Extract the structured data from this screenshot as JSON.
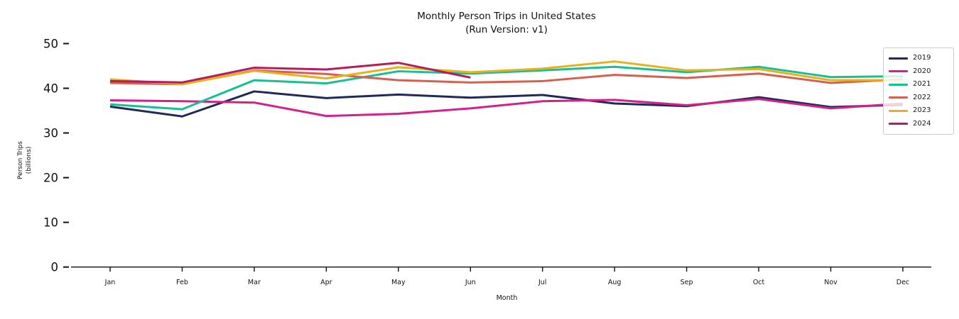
{
  "title": {
    "line1": "Monthly Person Trips in United States",
    "line2": "(Run Version: v1)"
  },
  "chart_data": {
    "type": "line",
    "title": "Monthly Person Trips in United States (Run Version: v1)",
    "xlabel": "Month",
    "ylabel_lines": [
      "Person Trips",
      "(billions)"
    ],
    "categories": [
      "Jan",
      "Feb",
      "Mar",
      "Apr",
      "May",
      "Jun",
      "Jul",
      "Aug",
      "Sep",
      "Oct",
      "Nov",
      "Dec"
    ],
    "y_ticks": [
      0,
      10,
      20,
      30,
      40,
      50
    ],
    "ylim": [
      0,
      52
    ],
    "grid": false,
    "legend_position": "upper right",
    "series": [
      {
        "name": "2019",
        "color": "#1f2a56",
        "values": [
          35.9,
          33.7,
          39.3,
          37.8,
          38.6,
          37.9,
          38.5,
          36.6,
          36.0,
          38.0,
          35.8,
          36.3
        ]
      },
      {
        "name": "2020",
        "color": "#d3208b",
        "values": [
          37.3,
          37.1,
          36.8,
          33.8,
          34.3,
          35.5,
          37.1,
          37.4,
          36.2,
          37.6,
          35.5,
          36.6
        ]
      },
      {
        "name": "2021",
        "color": "#17bf94",
        "values": [
          36.4,
          35.3,
          41.8,
          41.1,
          43.8,
          43.3,
          44.0,
          44.8,
          43.6,
          44.8,
          42.5,
          42.7
        ]
      },
      {
        "name": "2022",
        "color": "#d75f4f",
        "values": [
          41.2,
          40.9,
          44.0,
          43.2,
          41.8,
          41.3,
          41.6,
          43.0,
          42.3,
          43.3,
          41.2,
          42.0
        ]
      },
      {
        "name": "2023",
        "color": "#e9b01e",
        "values": [
          42.0,
          40.9,
          43.9,
          42.2,
          44.7,
          43.6,
          44.4,
          46.0,
          44.0,
          44.3,
          41.8,
          41.8
        ]
      },
      {
        "name": "2024",
        "color": "#b41d5c",
        "values": [
          41.6,
          41.3,
          44.6,
          44.2,
          45.7,
          42.4
        ]
      }
    ]
  }
}
